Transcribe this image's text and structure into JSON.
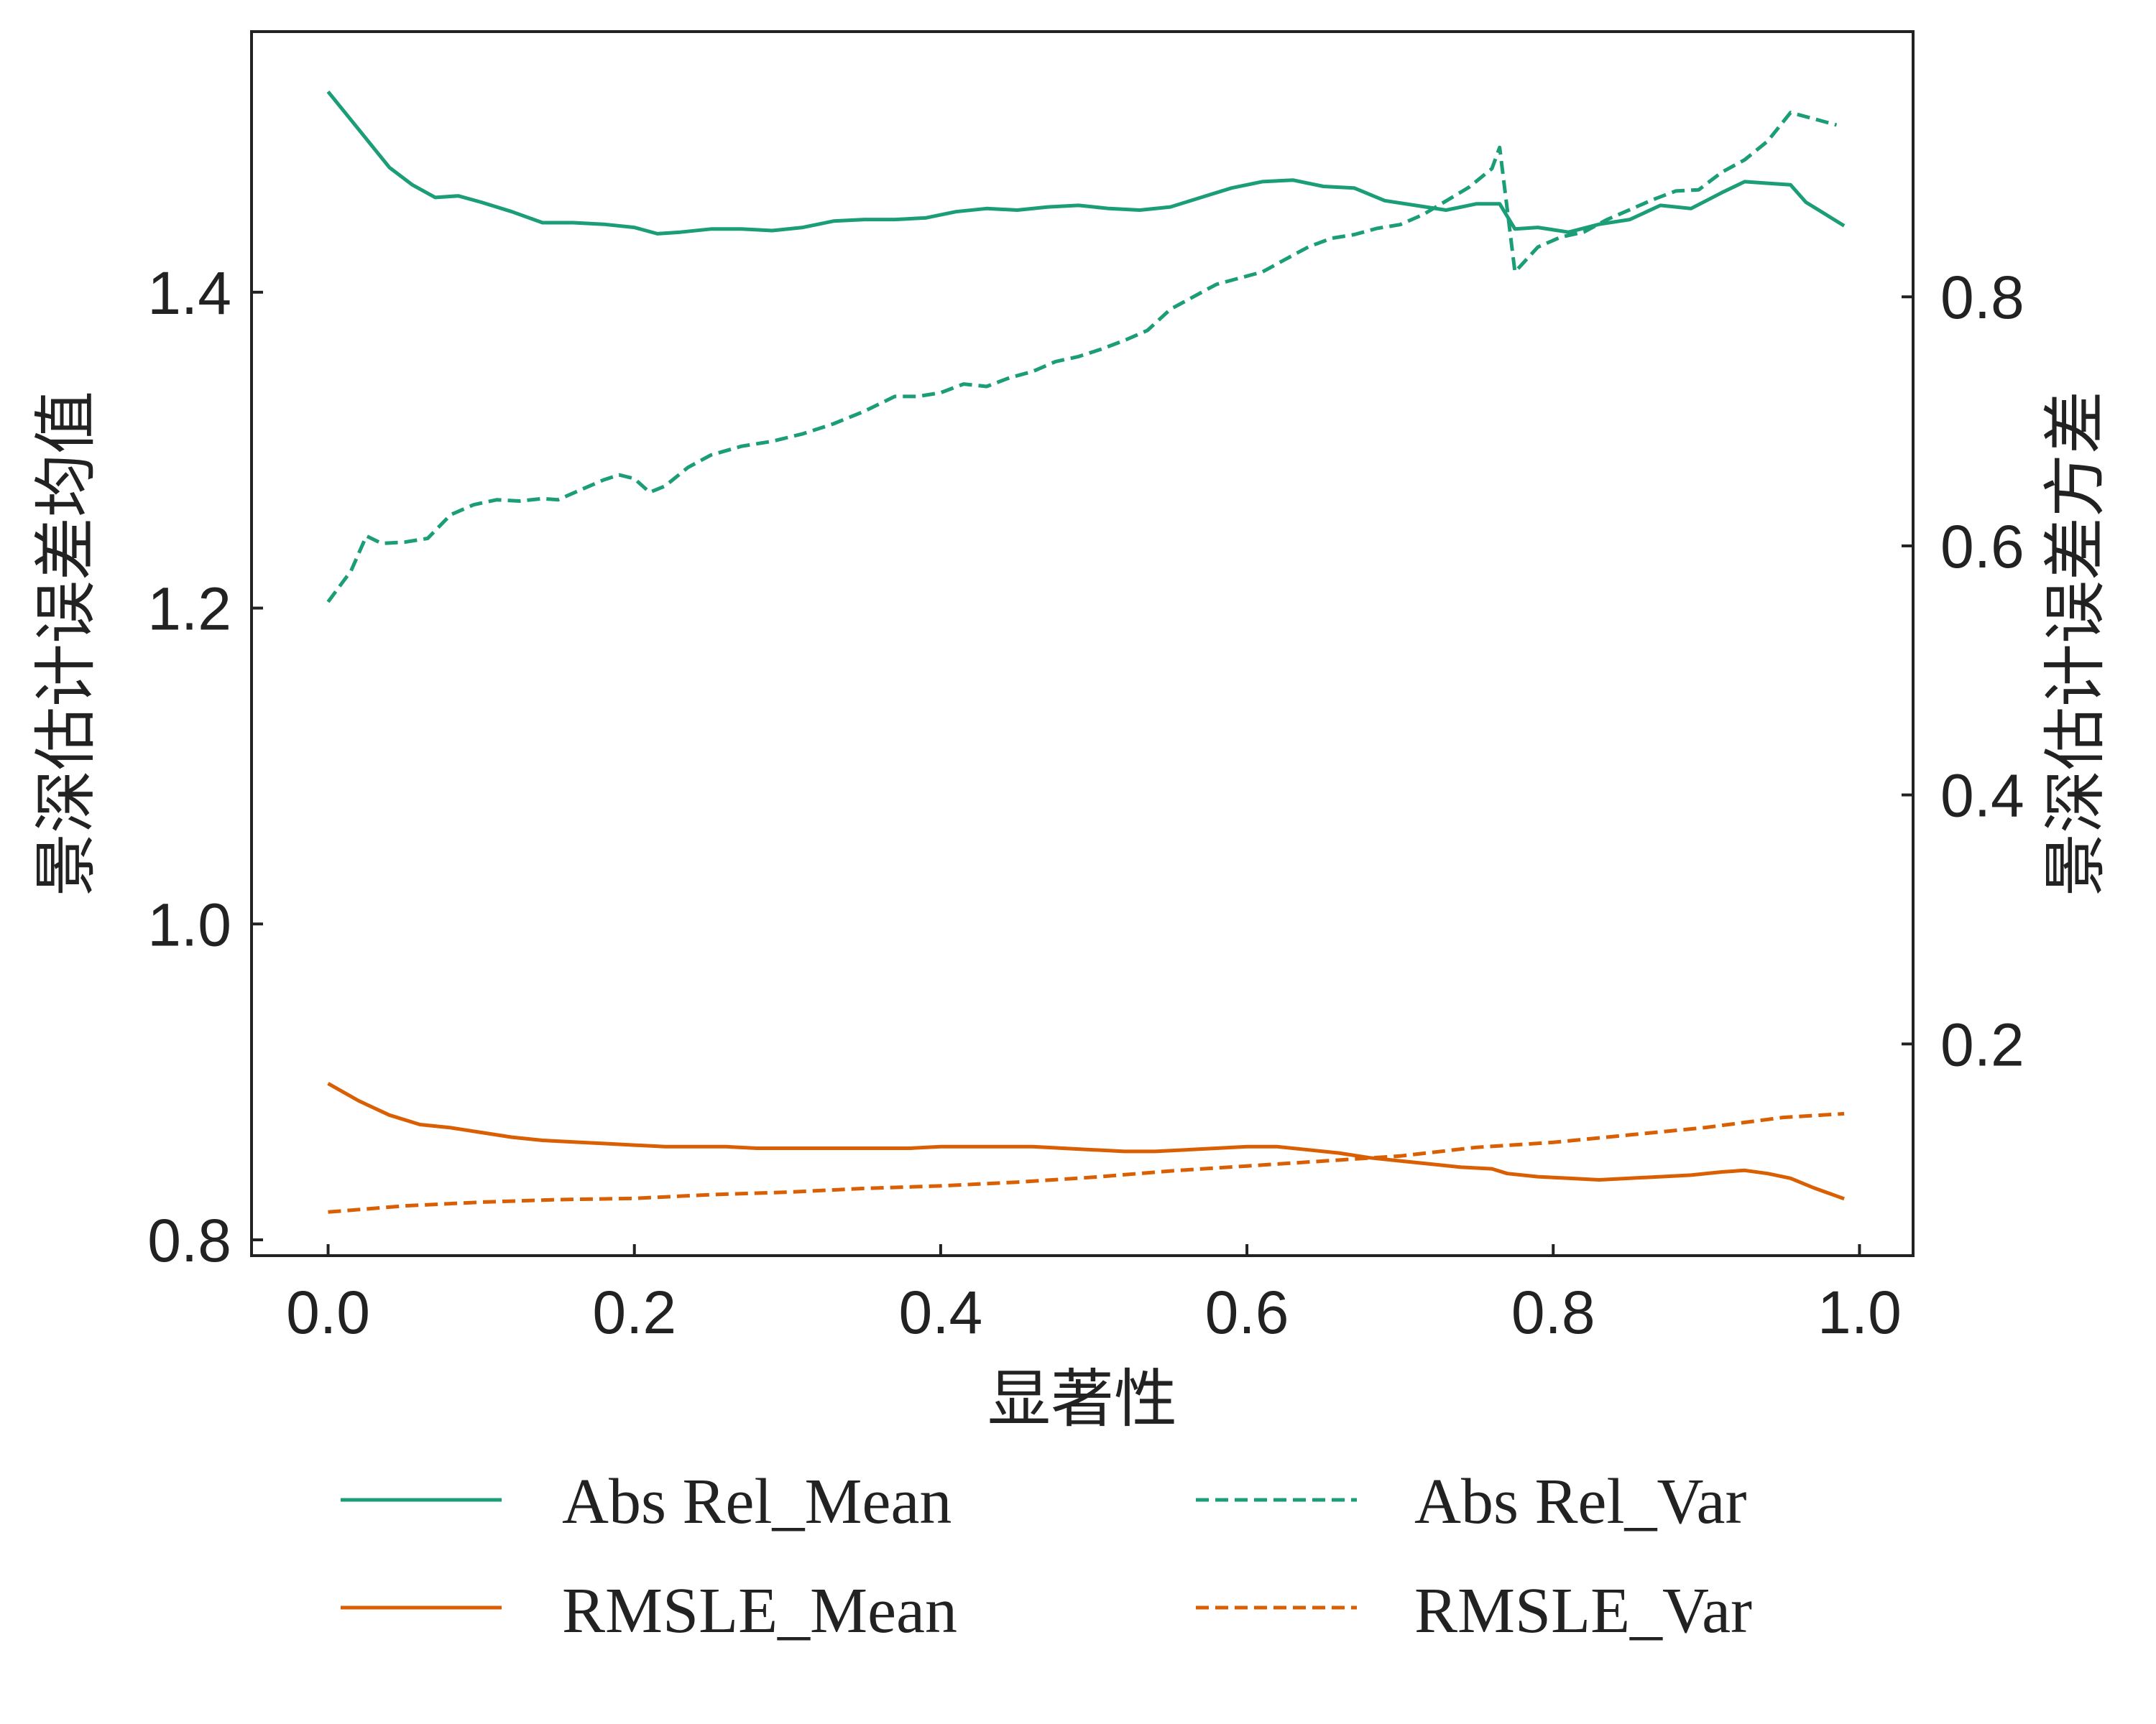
{
  "chart_data": {
    "type": "line",
    "xlabel": "显著性",
    "ylabel_left": "景深估计误差均值",
    "ylabel_right": "景深估计误差方差",
    "xlim": [
      -0.05,
      1.035
    ],
    "ylim_left": [
      0.79,
      1.565
    ],
    "ylim_right": [
      0.03,
      1.013
    ],
    "x_ticks": [
      "0.0",
      "0.2",
      "0.4",
      "0.6",
      "0.8",
      "1.0"
    ],
    "y_left_ticks": [
      "0.8",
      "1.0",
      "1.2",
      "1.4"
    ],
    "y_right_ticks": [
      "0.2",
      "0.4",
      "0.6",
      "0.8"
    ],
    "grid": false,
    "legend_placement": "bottom, outside, 2 columns",
    "x": [
      0.0,
      0.1,
      0.2,
      0.3,
      0.4,
      0.5,
      0.6,
      0.7,
      0.76,
      0.77,
      0.8,
      0.9,
      0.95,
      0.99
    ],
    "series": [
      {
        "name": "Abs Rel_Mean",
        "axis": "left",
        "style": "solid",
        "color": "#1b9e77",
        "points": [
          [
            0.0,
            1.527
          ],
          [
            0.02,
            1.503
          ],
          [
            0.04,
            1.479
          ],
          [
            0.055,
            1.468
          ],
          [
            0.07,
            1.46
          ],
          [
            0.085,
            1.461
          ],
          [
            0.1,
            1.457
          ],
          [
            0.12,
            1.451
          ],
          [
            0.14,
            1.444
          ],
          [
            0.16,
            1.444
          ],
          [
            0.18,
            1.443
          ],
          [
            0.2,
            1.441
          ],
          [
            0.215,
            1.437
          ],
          [
            0.23,
            1.438
          ],
          [
            0.25,
            1.44
          ],
          [
            0.27,
            1.44
          ],
          [
            0.29,
            1.439
          ],
          [
            0.31,
            1.441
          ],
          [
            0.33,
            1.445
          ],
          [
            0.35,
            1.446
          ],
          [
            0.37,
            1.446
          ],
          [
            0.39,
            1.447
          ],
          [
            0.41,
            1.451
          ],
          [
            0.43,
            1.453
          ],
          [
            0.45,
            1.452
          ],
          [
            0.47,
            1.454
          ],
          [
            0.49,
            1.455
          ],
          [
            0.51,
            1.453
          ],
          [
            0.53,
            1.452
          ],
          [
            0.55,
            1.454
          ],
          [
            0.57,
            1.46
          ],
          [
            0.59,
            1.466
          ],
          [
            0.61,
            1.47
          ],
          [
            0.63,
            1.471
          ],
          [
            0.65,
            1.467
          ],
          [
            0.67,
            1.466
          ],
          [
            0.69,
            1.458
          ],
          [
            0.71,
            1.455
          ],
          [
            0.73,
            1.452
          ],
          [
            0.75,
            1.456
          ],
          [
            0.765,
            1.456
          ],
          [
            0.775,
            1.44
          ],
          [
            0.79,
            1.441
          ],
          [
            0.81,
            1.438
          ],
          [
            0.83,
            1.443
          ],
          [
            0.85,
            1.446
          ],
          [
            0.87,
            1.455
          ],
          [
            0.89,
            1.453
          ],
          [
            0.91,
            1.463
          ],
          [
            0.925,
            1.47
          ],
          [
            0.94,
            1.469
          ],
          [
            0.955,
            1.468
          ],
          [
            0.965,
            1.457
          ],
          [
            0.98,
            1.448
          ],
          [
            0.99,
            1.442
          ]
        ]
      },
      {
        "name": "Abs Rel_Var",
        "axis": "right",
        "style": "dashed",
        "color": "#1b9e77",
        "points": [
          [
            0.0,
            0.555
          ],
          [
            0.015,
            0.58
          ],
          [
            0.025,
            0.608
          ],
          [
            0.035,
            0.602
          ],
          [
            0.05,
            0.603
          ],
          [
            0.065,
            0.606
          ],
          [
            0.08,
            0.625
          ],
          [
            0.095,
            0.633
          ],
          [
            0.11,
            0.637
          ],
          [
            0.125,
            0.636
          ],
          [
            0.14,
            0.638
          ],
          [
            0.15,
            0.637
          ],
          [
            0.165,
            0.645
          ],
          [
            0.18,
            0.653
          ],
          [
            0.19,
            0.657
          ],
          [
            0.2,
            0.654
          ],
          [
            0.21,
            0.643
          ],
          [
            0.22,
            0.648
          ],
          [
            0.235,
            0.663
          ],
          [
            0.25,
            0.673
          ],
          [
            0.27,
            0.68
          ],
          [
            0.29,
            0.684
          ],
          [
            0.31,
            0.69
          ],
          [
            0.33,
            0.698
          ],
          [
            0.35,
            0.708
          ],
          [
            0.37,
            0.72
          ],
          [
            0.385,
            0.72
          ],
          [
            0.4,
            0.723
          ],
          [
            0.415,
            0.73
          ],
          [
            0.43,
            0.728
          ],
          [
            0.445,
            0.735
          ],
          [
            0.46,
            0.74
          ],
          [
            0.475,
            0.748
          ],
          [
            0.49,
            0.752
          ],
          [
            0.505,
            0.758
          ],
          [
            0.52,
            0.765
          ],
          [
            0.535,
            0.773
          ],
          [
            0.55,
            0.79
          ],
          [
            0.565,
            0.8
          ],
          [
            0.58,
            0.81
          ],
          [
            0.595,
            0.815
          ],
          [
            0.61,
            0.82
          ],
          [
            0.625,
            0.83
          ],
          [
            0.64,
            0.84
          ],
          [
            0.655,
            0.847
          ],
          [
            0.67,
            0.85
          ],
          [
            0.685,
            0.855
          ],
          [
            0.7,
            0.858
          ],
          [
            0.715,
            0.866
          ],
          [
            0.73,
            0.877
          ],
          [
            0.745,
            0.888
          ],
          [
            0.76,
            0.903
          ],
          [
            0.765,
            0.92
          ],
          [
            0.775,
            0.82
          ],
          [
            0.79,
            0.84
          ],
          [
            0.805,
            0.848
          ],
          [
            0.82,
            0.852
          ],
          [
            0.835,
            0.862
          ],
          [
            0.85,
            0.87
          ],
          [
            0.865,
            0.878
          ],
          [
            0.88,
            0.885
          ],
          [
            0.895,
            0.886
          ],
          [
            0.91,
            0.9
          ],
          [
            0.925,
            0.91
          ],
          [
            0.94,
            0.925
          ],
          [
            0.955,
            0.948
          ],
          [
            0.97,
            0.943
          ],
          [
            0.985,
            0.938
          ]
        ]
      },
      {
        "name": "RMSLE_Mean",
        "axis": "left",
        "style": "solid",
        "color": "#d95f02",
        "points": [
          [
            0.0,
            0.899
          ],
          [
            0.02,
            0.888
          ],
          [
            0.04,
            0.879
          ],
          [
            0.06,
            0.873
          ],
          [
            0.08,
            0.871
          ],
          [
            0.1,
            0.868
          ],
          [
            0.12,
            0.865
          ],
          [
            0.14,
            0.863
          ],
          [
            0.16,
            0.862
          ],
          [
            0.18,
            0.861
          ],
          [
            0.2,
            0.86
          ],
          [
            0.22,
            0.859
          ],
          [
            0.24,
            0.859
          ],
          [
            0.26,
            0.859
          ],
          [
            0.28,
            0.858
          ],
          [
            0.3,
            0.858
          ],
          [
            0.32,
            0.858
          ],
          [
            0.34,
            0.858
          ],
          [
            0.36,
            0.858
          ],
          [
            0.38,
            0.858
          ],
          [
            0.4,
            0.859
          ],
          [
            0.42,
            0.859
          ],
          [
            0.44,
            0.859
          ],
          [
            0.46,
            0.859
          ],
          [
            0.48,
            0.858
          ],
          [
            0.5,
            0.857
          ],
          [
            0.52,
            0.856
          ],
          [
            0.54,
            0.856
          ],
          [
            0.56,
            0.857
          ],
          [
            0.58,
            0.858
          ],
          [
            0.6,
            0.859
          ],
          [
            0.62,
            0.859
          ],
          [
            0.64,
            0.857
          ],
          [
            0.66,
            0.855
          ],
          [
            0.68,
            0.852
          ],
          [
            0.7,
            0.85
          ],
          [
            0.72,
            0.848
          ],
          [
            0.74,
            0.846
          ],
          [
            0.76,
            0.845
          ],
          [
            0.77,
            0.842
          ],
          [
            0.79,
            0.84
          ],
          [
            0.81,
            0.839
          ],
          [
            0.83,
            0.838
          ],
          [
            0.85,
            0.839
          ],
          [
            0.87,
            0.84
          ],
          [
            0.89,
            0.841
          ],
          [
            0.91,
            0.843
          ],
          [
            0.925,
            0.844
          ],
          [
            0.94,
            0.842
          ],
          [
            0.955,
            0.839
          ],
          [
            0.97,
            0.833
          ],
          [
            0.99,
            0.826
          ]
        ]
      },
      {
        "name": "RMSLE_Var",
        "axis": "right",
        "style": "dashed",
        "color": "#d95f02",
        "points": [
          [
            0.0,
            0.065
          ],
          [
            0.05,
            0.07
          ],
          [
            0.1,
            0.073
          ],
          [
            0.15,
            0.075
          ],
          [
            0.2,
            0.076
          ],
          [
            0.25,
            0.079
          ],
          [
            0.3,
            0.081
          ],
          [
            0.35,
            0.084
          ],
          [
            0.4,
            0.086
          ],
          [
            0.45,
            0.089
          ],
          [
            0.5,
            0.093
          ],
          [
            0.55,
            0.098
          ],
          [
            0.6,
            0.102
          ],
          [
            0.65,
            0.106
          ],
          [
            0.7,
            0.11
          ],
          [
            0.75,
            0.117
          ],
          [
            0.8,
            0.121
          ],
          [
            0.85,
            0.127
          ],
          [
            0.9,
            0.133
          ],
          [
            0.95,
            0.141
          ],
          [
            0.99,
            0.144
          ]
        ]
      }
    ]
  }
}
